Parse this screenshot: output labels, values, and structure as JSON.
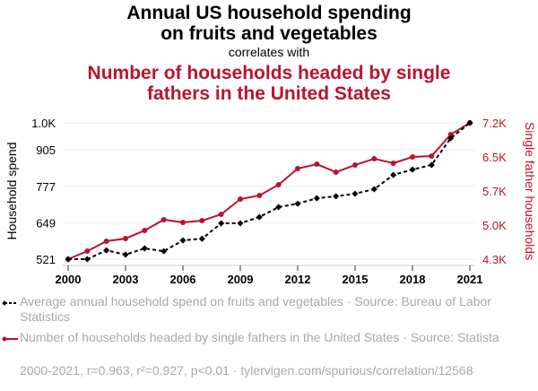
{
  "title": {
    "line1": "Annual US household spending",
    "line2": "on fruits and vegetables",
    "connector": "correlates with",
    "line3": "Number of households headed by single",
    "line4": "fathers in the United States"
  },
  "colors": {
    "series1": "#000000",
    "series2": "#b8132e",
    "grid": "#eeeeee",
    "muted": "#a8a8a8"
  },
  "legend": {
    "series1": "Average annual household spend on fruits and vegetables · Source: Bureau of Labor Statistics",
    "series2": "Number of households headed by single fathers in the United States · Source: Statista"
  },
  "footer": "2000-2021, r=0.963, r²=0.927, p<0.01 · tylervigen.com/spurious/correlation/12568",
  "chart_data": {
    "type": "line",
    "title": "Annual US household spending on fruits and vegetables correlates with Number of households headed by single fathers in the United States",
    "xlabel": "",
    "ylabel": "Household spend",
    "y2label": "Single father households",
    "x": [
      2000,
      2001,
      2002,
      2003,
      2004,
      2005,
      2006,
      2007,
      2008,
      2009,
      2010,
      2011,
      2012,
      2013,
      2014,
      2015,
      2016,
      2017,
      2018,
      2019,
      2020,
      2021
    ],
    "x_ticks": [
      "2000",
      "2003",
      "2006",
      "2009",
      "2012",
      "2015",
      "2018",
      "2021"
    ],
    "x_tick_values": [
      2000,
      2003,
      2006,
      2009,
      2012,
      2015,
      2018,
      2021
    ],
    "xlim": [
      2000,
      2021
    ],
    "y_ticks": [
      "521",
      "649",
      "777",
      "905",
      "1.0K"
    ],
    "y_tick_values": [
      521,
      649,
      777,
      905,
      1000
    ],
    "ylim": [
      521,
      1000
    ],
    "y2_ticks": [
      "4.3K",
      "5.0K",
      "5.7K",
      "6.5K",
      "7.2K"
    ],
    "y2_tick_values": [
      4300,
      5025,
      5750,
      6475,
      7200
    ],
    "y2lim": [
      4300,
      7200
    ],
    "grid": true,
    "legend_position": "bottom",
    "series": [
      {
        "name": "Average annual household spend on fruits and vegetables",
        "axis": "left",
        "style": "dashed-diamond",
        "values": [
          521,
          521,
          552,
          537,
          559,
          549,
          587,
          593,
          647,
          647,
          669,
          704,
          716,
          735,
          742,
          751,
          767,
          817,
          836,
          852,
          946,
          1000
        ]
      },
      {
        "name": "Number of households headed by single fathers in the United States",
        "axis": "right",
        "style": "solid-circle",
        "values": [
          4300,
          4472,
          4682,
          4739,
          4911,
          5140,
          5082,
          5120,
          5254,
          5578,
          5655,
          5884,
          6227,
          6322,
          6151,
          6303,
          6437,
          6342,
          6475,
          6494,
          6952,
          7200
        ]
      }
    ]
  }
}
